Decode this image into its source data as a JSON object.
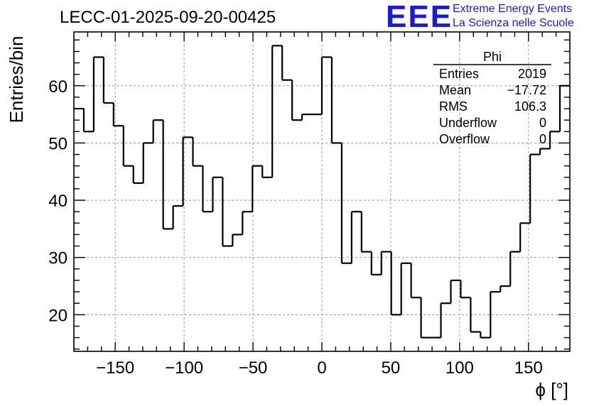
{
  "header": {
    "run_title": "LECC-01-2025-09-20-00425",
    "logo_text": "EEE",
    "logo_line1": "Extreme Energy Events",
    "logo_line2": "La Scienza nelle Scuole",
    "logo_color": "#1a1adf"
  },
  "stats": {
    "name": "Phi",
    "rows": [
      {
        "label": "Entries",
        "value": "2019"
      },
      {
        "label": "Mean",
        "value": "−17.72"
      },
      {
        "label": "RMS",
        "value": "106.3"
      },
      {
        "label": "Underflow",
        "value": "0"
      },
      {
        "label": "Overflow",
        "value": "0"
      }
    ]
  },
  "chart_data": {
    "type": "bar",
    "histogram": "step",
    "xlabel": "ϕ [°]",
    "ylabel": "Entries/bin",
    "xlim": [
      -180,
      180
    ],
    "ylim": [
      13.6,
      69.4
    ],
    "bin_width": 7.2,
    "x_ticks": [
      -150,
      -100,
      -50,
      0,
      50,
      100,
      150
    ],
    "x_tick_labels": [
      "−150",
      "−100",
      "−50",
      "0",
      "50",
      "100",
      "150"
    ],
    "y_ticks": [
      20,
      30,
      40,
      50,
      60
    ],
    "y_tick_labels": [
      "20",
      "30",
      "40",
      "50",
      "60"
    ],
    "grid": true,
    "values": [
      56,
      52,
      65,
      57,
      53,
      46,
      43,
      50,
      54,
      35,
      39,
      51,
      46,
      38,
      44,
      32,
      34,
      38,
      46,
      44,
      67,
      61,
      54,
      55,
      55,
      65,
      50,
      29,
      38,
      31,
      27,
      31,
      20,
      29,
      23,
      16,
      16,
      22,
      26,
      23,
      17,
      16,
      24,
      25,
      31,
      36,
      48,
      49,
      52,
      60
    ],
    "line_color": "#000000"
  }
}
